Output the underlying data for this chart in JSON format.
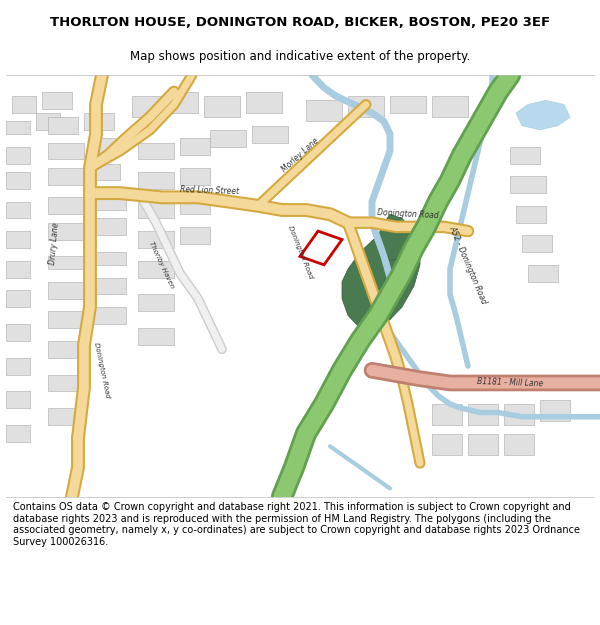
{
  "title": "THORLTON HOUSE, DONINGTON ROAD, BICKER, BOSTON, PE20 3EF",
  "subtitle": "Map shows position and indicative extent of the property.",
  "footer": "Contains OS data © Crown copyright and database right 2021. This information is subject to Crown copyright and database rights 2023 and is reproduced with the permission of HM Land Registry. The polygons (including the associated geometry, namely x, y co-ordinates) are subject to Crown copyright and database rights 2023 Ordnance Survey 100026316.",
  "map_bg": "#ffffff",
  "road_yellow_fill": "#f5d99a",
  "road_yellow_edge": "#d4aa40",
  "road_white_fill": "#ffffff",
  "road_white_edge": "#cccccc",
  "building_fill": "#e0e0e0",
  "building_edge": "#aaaaaa",
  "water_color": "#a8cce0",
  "green_fill": "#4a7a50",
  "green_edge": "#3a6040",
  "a52_fill": "#8cc870",
  "a52_edge": "#60a050",
  "b1181_fill": "#e8b0a0",
  "b1181_edge": "#c08070",
  "plot_color": "#cc0000",
  "label_color": "#333333",
  "title_fontsize": 9.5,
  "subtitle_fontsize": 8.5,
  "footer_fontsize": 7.0
}
